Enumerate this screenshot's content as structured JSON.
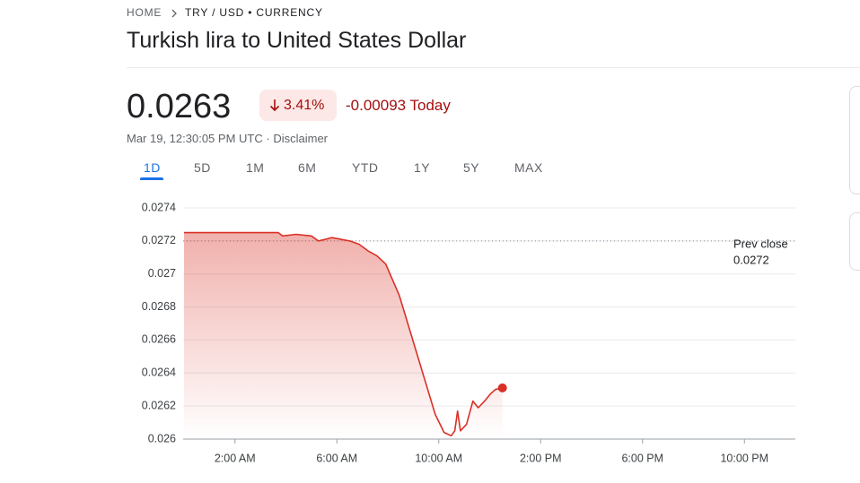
{
  "breadcrumb": [
    "HOME",
    "TRY / USD • CURRENCY"
  ],
  "title": "Turkish lira to United States Dollar",
  "price": "0.0263",
  "change_percent": "3.41%",
  "change": "-0.00093 Today",
  "timestamp": "Mar 19, 12:30:05 PM UTC",
  "separator": "·",
  "disclaimer": "Disclaimer",
  "tabs": [
    "1D",
    "5D",
    "1M",
    "6M",
    "YTD",
    "1Y",
    "5Y",
    "MAX"
  ],
  "active_tab": 0,
  "chart_data": {
    "type": "line",
    "color": "#d93025",
    "x": [
      0,
      1.6,
      3.7,
      3.87,
      4.4,
      5.0,
      5.28,
      5.81,
      6.51,
      6.87,
      7.22,
      7.57,
      7.92,
      8.45,
      8.98,
      9.51,
      9.86,
      10.21,
      10.49,
      10.63,
      10.74,
      10.85,
      11.09,
      11.34,
      11.55,
      11.8,
      12.01,
      12.22,
      12.5
    ],
    "values": [
      0.02725,
      0.02725,
      0.02725,
      0.02723,
      0.02724,
      0.02723,
      0.0272,
      0.02722,
      0.0272,
      0.02718,
      0.02714,
      0.02711,
      0.02706,
      0.02687,
      0.0266,
      0.02633,
      0.02615,
      0.02604,
      0.02602,
      0.02605,
      0.02617,
      0.02605,
      0.02609,
      0.02623,
      0.02619,
      0.02623,
      0.02627,
      0.0263,
      0.02631
    ],
    "xlim": [
      0,
      24
    ],
    "xticks": [
      {
        "value": 2,
        "label": "2:00 AM"
      },
      {
        "value": 6,
        "label": "6:00 AM"
      },
      {
        "value": 10,
        "label": "10:00 AM"
      },
      {
        "value": 14,
        "label": "2:00 PM"
      },
      {
        "value": 18,
        "label": "6:00 PM"
      },
      {
        "value": 22,
        "label": "10:00 PM"
      }
    ],
    "ylim": [
      0.026,
      0.0274
    ],
    "yticks": [
      0.026,
      0.0262,
      0.0264,
      0.0266,
      0.0268,
      0.027,
      0.0272,
      0.0274
    ],
    "grid": true,
    "reference_line": {
      "label": "Prev close",
      "value": 0.0272
    }
  }
}
